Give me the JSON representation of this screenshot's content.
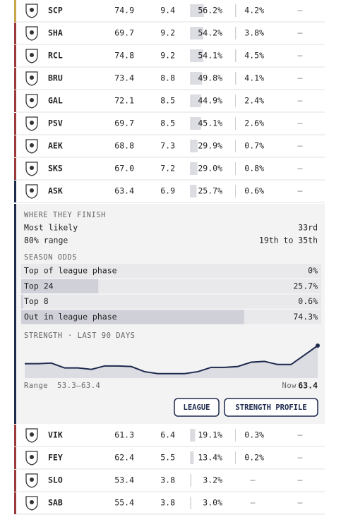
{
  "rows_top": [
    {
      "team": "SCP",
      "accent": "#c9a54b",
      "rating": "74.9",
      "points": "9.4",
      "top24": {
        "value": 56.2,
        "label": "56.2%"
      },
      "top8": {
        "value": 4.2,
        "label": "4.2%"
      },
      "winner": "–"
    },
    {
      "team": "SHA",
      "accent": "#9b3a3a",
      "rating": "69.7",
      "points": "9.2",
      "top24": {
        "value": 54.2,
        "label": "54.2%"
      },
      "top8": {
        "value": 3.8,
        "label": "3.8%"
      },
      "winner": "–"
    },
    {
      "team": "RCL",
      "accent": "#9b3a3a",
      "rating": "74.8",
      "points": "9.2",
      "top24": {
        "value": 54.1,
        "label": "54.1%"
      },
      "top8": {
        "value": 4.5,
        "label": "4.5%"
      },
      "winner": "–"
    },
    {
      "team": "BRU",
      "accent": "#9b3a3a",
      "rating": "73.4",
      "points": "8.8",
      "top24": {
        "value": 49.8,
        "label": "49.8%"
      },
      "top8": {
        "value": 4.1,
        "label": "4.1%"
      },
      "winner": "–"
    },
    {
      "team": "GAL",
      "accent": "#9b3a3a",
      "rating": "72.1",
      "points": "8.5",
      "top24": {
        "value": 44.9,
        "label": "44.9%"
      },
      "top8": {
        "value": 2.4,
        "label": "2.4%"
      },
      "winner": "–"
    },
    {
      "team": "PSV",
      "accent": "#9b3a3a",
      "rating": "69.7",
      "points": "8.5",
      "top24": {
        "value": 45.1,
        "label": "45.1%"
      },
      "top8": {
        "value": 2.6,
        "label": "2.6%"
      },
      "winner": "–"
    },
    {
      "team": "AEK",
      "accent": "#9b3a3a",
      "rating": "68.8",
      "points": "7.3",
      "top24": {
        "value": 29.9,
        "label": "29.9%"
      },
      "top8": {
        "value": 0.7,
        "label": "0.7%"
      },
      "winner": "–"
    },
    {
      "team": "SKS",
      "accent": "#9b3a3a",
      "rating": "67.0",
      "points": "7.2",
      "top24": {
        "value": 29.0,
        "label": "29.0%"
      },
      "top8": {
        "value": 0.8,
        "label": "0.8%"
      },
      "winner": "–"
    },
    {
      "team": "ASK",
      "accent": "#1e2a4e",
      "rating": "63.4",
      "points": "6.9",
      "top24": {
        "value": 25.7,
        "label": "25.7%"
      },
      "top8": {
        "value": 0.6,
        "label": "0.6%"
      },
      "winner": "–"
    }
  ],
  "panel": {
    "finish_title": "WHERE THEY FINISH",
    "most_likely_label": "Most likely",
    "most_likely": "33rd",
    "range_label": "80% range",
    "range": "19th to 35th",
    "odds_title": "SEASON ODDS",
    "odds": [
      {
        "label": "Top of league phase",
        "value": 0,
        "value_label": "0%"
      },
      {
        "label": "Top 24",
        "value": 25.7,
        "value_label": "25.7%"
      },
      {
        "label": "Top 8",
        "value": 0.6,
        "value_label": "0.6%"
      },
      {
        "label": "Out in league phase",
        "value": 74.3,
        "value_label": "74.3%"
      }
    ],
    "strength_title": "STRENGTH",
    "strength_period": "· LAST 90 DAYS",
    "strength": {
      "values": [
        57.1,
        57.1,
        57.3,
        55.6,
        55.6,
        55.1,
        56.3,
        56.3,
        56.1,
        54.3,
        53.6,
        53.6,
        53.6,
        54.3,
        55.8,
        55.8,
        56.1,
        57.6,
        57.9,
        56.8,
        56.8,
        60.1,
        63.4
      ],
      "range_word": "Range",
      "min": 53.3,
      "sep": "–",
      "max": 63.4,
      "now_label": "Now",
      "now": "63.4"
    },
    "buttons": [
      "LEAGUE",
      "STRENGTH PROFILE"
    ]
  },
  "rows_bottom": [
    {
      "team": "VIK",
      "accent": "#9b3a3a",
      "rating": "61.3",
      "points": "6.4",
      "top24": {
        "value": 19.1,
        "label": "19.1%"
      },
      "top8": {
        "value": 0.3,
        "label": "0.3%"
      },
      "winner": "–"
    },
    {
      "team": "FEY",
      "accent": "#9b3a3a",
      "rating": "62.4",
      "points": "5.5",
      "top24": {
        "value": 13.4,
        "label": "13.4%"
      },
      "top8": {
        "value": 0.2,
        "label": "0.2%"
      },
      "winner": "–"
    },
    {
      "team": "SLO",
      "accent": "#9b3a3a",
      "rating": "53.4",
      "points": "3.8",
      "top24": {
        "value": 3.2,
        "label": "3.2%"
      },
      "top8": "–",
      "winner": "–"
    },
    {
      "team": "SAB",
      "accent": "#9b3a3a",
      "rating": "55.4",
      "points": "3.8",
      "top24": {
        "value": 3.0,
        "label": "3.0%"
      },
      "top8": "–",
      "winner": "–"
    }
  ]
}
